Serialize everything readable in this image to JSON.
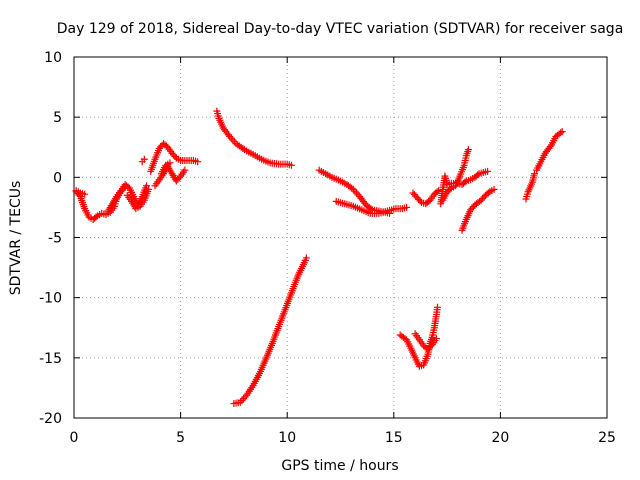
{
  "chart_data": {
    "type": "scatter",
    "title": "Day 129 of 2018, Sidereal Day-to-day VTEC variation (SDTVAR) for receiver saga",
    "xlabel": "GPS time / hours",
    "ylabel": "SDTVAR / TECUs",
    "xlim": [
      0,
      25
    ],
    "ylim": [
      -20,
      10
    ],
    "xticks": [
      0,
      5,
      10,
      15,
      20,
      25
    ],
    "yticks": [
      -20,
      -15,
      -10,
      -5,
      0,
      5,
      10
    ],
    "grid": true,
    "marker": "+",
    "color": "#ff0000",
    "segments": [
      [
        [
          0.1,
          -1.2
        ],
        [
          0.3,
          -1.6
        ],
        [
          0.5,
          -2.6
        ],
        [
          0.7,
          -3.3
        ],
        [
          0.9,
          -3.5
        ],
        [
          1.1,
          -3.2
        ],
        [
          1.3,
          -3.0
        ],
        [
          1.5,
          -3.1
        ],
        [
          1.7,
          -2.9
        ],
        [
          1.9,
          -2.4
        ],
        [
          2.0,
          -1.8
        ],
        [
          2.2,
          -1.2
        ],
        [
          2.4,
          -0.8
        ]
      ],
      [
        [
          0.1,
          -1.1
        ],
        [
          0.3,
          -1.3
        ],
        [
          0.5,
          -1.4
        ]
      ],
      [
        [
          1.6,
          -2.8
        ],
        [
          1.8,
          -2.2
        ],
        [
          2.0,
          -1.6
        ],
        [
          2.2,
          -1.1
        ],
        [
          2.4,
          -0.6
        ],
        [
          2.6,
          -0.9
        ],
        [
          2.8,
          -1.6
        ],
        [
          3.0,
          -2.3
        ],
        [
          3.2,
          -1.6
        ],
        [
          3.4,
          -0.7
        ]
      ],
      [
        [
          2.5,
          -1.5
        ],
        [
          2.7,
          -2.0
        ],
        [
          2.9,
          -2.6
        ],
        [
          3.1,
          -2.4
        ],
        [
          3.3,
          -1.9
        ],
        [
          3.5,
          -1.0
        ]
      ],
      [
        [
          3.2,
          1.3
        ],
        [
          3.3,
          1.5
        ]
      ],
      [
        [
          3.6,
          0.5
        ],
        [
          3.8,
          1.5
        ],
        [
          4.0,
          2.4
        ],
        [
          4.2,
          2.8
        ],
        [
          4.4,
          2.5
        ],
        [
          4.6,
          2.0
        ],
        [
          4.8,
          1.6
        ],
        [
          5.0,
          1.4
        ],
        [
          5.3,
          1.4
        ],
        [
          5.6,
          1.4
        ],
        [
          5.8,
          1.3
        ]
      ],
      [
        [
          3.8,
          -0.7
        ],
        [
          4.0,
          -0.2
        ],
        [
          4.2,
          0.3
        ],
        [
          4.4,
          0.9
        ],
        [
          4.6,
          0.3
        ],
        [
          4.8,
          -0.3
        ],
        [
          5.0,
          0.1
        ],
        [
          5.2,
          0.6
        ]
      ],
      [
        [
          4.1,
          0.3
        ],
        [
          4.3,
          1.0
        ],
        [
          4.5,
          1.2
        ]
      ],
      [
        [
          6.7,
          5.5
        ],
        [
          6.8,
          4.9
        ],
        [
          7.0,
          4.1
        ],
        [
          7.3,
          3.4
        ],
        [
          7.6,
          2.8
        ],
        [
          8.0,
          2.3
        ],
        [
          8.4,
          1.9
        ],
        [
          8.8,
          1.5
        ],
        [
          9.2,
          1.2
        ],
        [
          9.6,
          1.1
        ],
        [
          10.0,
          1.1
        ],
        [
          10.2,
          1.0
        ]
      ],
      [
        [
          7.5,
          -18.8
        ],
        [
          7.8,
          -18.7
        ],
        [
          8.1,
          -18.1
        ],
        [
          8.4,
          -17.3
        ],
        [
          8.7,
          -16.3
        ],
        [
          9.0,
          -15.1
        ],
        [
          9.3,
          -13.8
        ],
        [
          9.6,
          -12.4
        ],
        [
          9.9,
          -11.0
        ],
        [
          10.2,
          -9.6
        ],
        [
          10.5,
          -8.2
        ],
        [
          10.8,
          -7.1
        ],
        [
          10.9,
          -6.7
        ]
      ],
      [
        [
          11.5,
          0.6
        ],
        [
          11.8,
          0.3
        ],
        [
          12.1,
          0.0
        ],
        [
          12.5,
          -0.3
        ],
        [
          12.8,
          -0.6
        ],
        [
          13.1,
          -1.0
        ],
        [
          13.4,
          -1.6
        ],
        [
          13.7,
          -2.3
        ],
        [
          14.0,
          -2.7
        ],
        [
          14.3,
          -2.8
        ],
        [
          14.6,
          -2.9
        ],
        [
          14.8,
          -3.0
        ]
      ],
      [
        [
          12.3,
          -2.0
        ],
        [
          12.7,
          -2.2
        ],
        [
          13.1,
          -2.4
        ],
        [
          13.5,
          -2.7
        ],
        [
          13.9,
          -3.0
        ],
        [
          14.3,
          -3.0
        ],
        [
          14.7,
          -2.8
        ],
        [
          15.1,
          -2.6
        ],
        [
          15.4,
          -2.6
        ],
        [
          15.6,
          -2.5
        ]
      ],
      [
        [
          15.3,
          -13.1
        ],
        [
          15.6,
          -13.5
        ],
        [
          15.8,
          -14.2
        ],
        [
          16.0,
          -15.0
        ],
        [
          16.2,
          -15.7
        ],
        [
          16.4,
          -15.6
        ],
        [
          16.6,
          -14.7
        ],
        [
          16.7,
          -13.8
        ],
        [
          16.8,
          -13.3
        ],
        [
          16.9,
          -12.5
        ],
        [
          17.0,
          -11.4
        ],
        [
          17.05,
          -10.8
        ]
      ],
      [
        [
          16.0,
          -13.0
        ],
        [
          16.2,
          -13.5
        ],
        [
          16.4,
          -14.0
        ],
        [
          16.6,
          -14.3
        ],
        [
          16.8,
          -13.9
        ],
        [
          17.0,
          -13.4
        ]
      ],
      [
        [
          15.9,
          -1.3
        ],
        [
          16.1,
          -1.7
        ],
        [
          16.3,
          -2.1
        ],
        [
          16.5,
          -2.2
        ],
        [
          16.7,
          -1.9
        ],
        [
          16.9,
          -1.4
        ],
        [
          17.1,
          -1.1
        ]
      ],
      [
        [
          17.2,
          -2.2
        ],
        [
          17.3,
          -1.0
        ],
        [
          17.4,
          0.1
        ],
        [
          17.5,
          -0.6
        ],
        [
          17.7,
          -0.5
        ],
        [
          18.0,
          -0.5
        ],
        [
          18.2,
          -0.6
        ],
        [
          18.4,
          -0.3
        ],
        [
          18.6,
          -0.2
        ],
        [
          18.8,
          0.0
        ],
        [
          19.0,
          0.3
        ],
        [
          19.2,
          0.4
        ],
        [
          19.4,
          0.5
        ]
      ],
      [
        [
          17.3,
          -1.9
        ],
        [
          17.5,
          -1.2
        ],
        [
          17.7,
          -0.9
        ],
        [
          17.9,
          -0.7
        ],
        [
          18.1,
          0.1
        ],
        [
          18.3,
          1.0
        ],
        [
          18.4,
          1.8
        ],
        [
          18.5,
          2.3
        ]
      ],
      [
        [
          18.2,
          -4.4
        ],
        [
          18.4,
          -3.5
        ],
        [
          18.6,
          -2.7
        ],
        [
          18.8,
          -2.3
        ],
        [
          19.1,
          -1.9
        ],
        [
          19.3,
          -1.5
        ],
        [
          19.5,
          -1.2
        ],
        [
          19.7,
          -1.0
        ]
      ],
      [
        [
          21.2,
          -1.8
        ],
        [
          21.3,
          -1.2
        ],
        [
          21.5,
          -0.4
        ],
        [
          21.6,
          0.3
        ]
      ],
      [
        [
          21.7,
          0.6
        ],
        [
          21.9,
          1.3
        ],
        [
          22.1,
          2.0
        ],
        [
          22.4,
          2.7
        ],
        [
          22.6,
          3.4
        ],
        [
          22.9,
          3.8
        ]
      ]
    ]
  }
}
